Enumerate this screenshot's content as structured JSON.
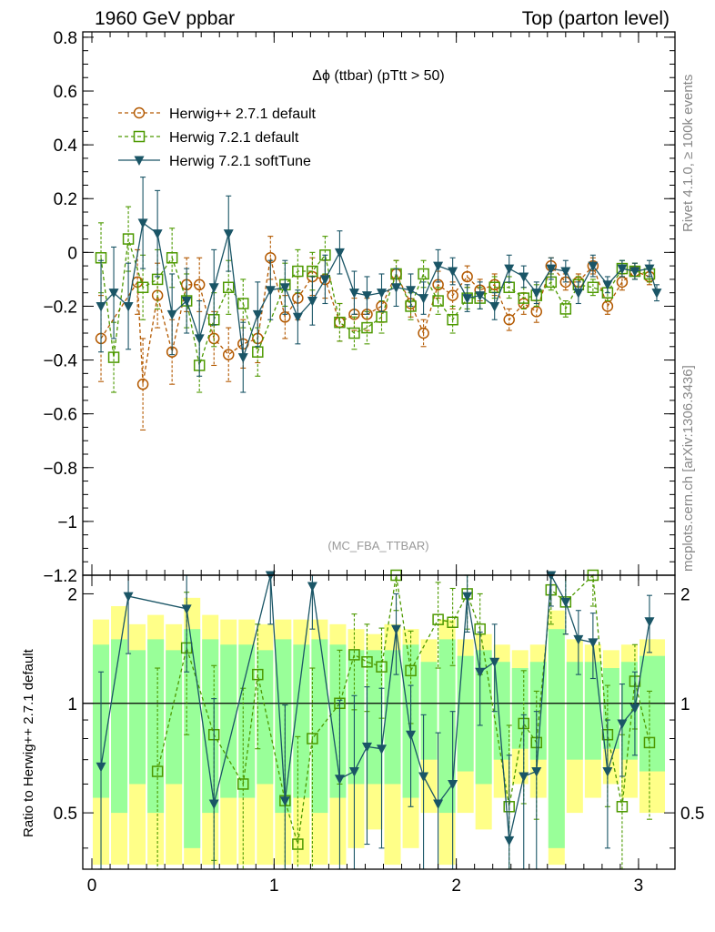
{
  "header": {
    "left_title": "1960 GeV ppbar",
    "right_title": "Top (parton level)"
  },
  "plot_title": "Δϕ (ttbar) (pTtt > 50)",
  "analysis_label": "(MC_FBA_TTBAR)",
  "side_labels": {
    "rivet": "Rivet 4.1.0, ≥ 100k events",
    "mcplots": "mcplots.cern.ch [arXiv:1306.3436]"
  },
  "colors": {
    "herwig_pp": "#b35900",
    "herwig_721": "#4d9900",
    "herwig_soft": "#1a5566",
    "band_inner": "#99ff99",
    "band_outer": "#ffff88"
  },
  "chart_data": [
    {
      "type": "line",
      "panel": "main",
      "title": "Δϕ (ttbar) (pTtt > 50)",
      "xlabel": "",
      "ylabel": "",
      "xlim": [
        -0.05,
        3.2
      ],
      "ylim": [
        -1.2,
        0.82
      ],
      "yticks": [
        "0.8",
        "0.6",
        "0.4",
        "0.2",
        "0",
        "−0.2",
        "−0.4",
        "−0.6",
        "−0.8",
        "−1",
        "−1.2"
      ],
      "legend": [
        "Herwig++ 2.7.1 default",
        "Herwig 7.2.1 default",
        "Herwig 7.2.1 softTune"
      ],
      "legend_position": "top-left",
      "x": [
        0.05,
        0.15,
        0.25,
        0.35,
        0.45,
        0.55,
        0.65,
        0.75,
        0.85,
        0.95,
        1.05,
        1.15,
        1.25,
        1.35,
        1.45,
        1.55,
        1.65,
        1.75,
        1.85,
        1.95,
        2.05,
        2.15,
        2.25,
        2.35,
        2.45,
        2.55,
        2.65,
        2.75,
        2.85,
        2.95,
        3.05,
        3.1
      ],
      "series": [
        {
          "name": "Herwig++ 2.7.1 default",
          "marker": "circle",
          "x": [
            0.05,
            0.25,
            0.28,
            0.36,
            0.44,
            0.52,
            0.59,
            0.67,
            0.75,
            0.83,
            0.91,
            0.98,
            1.06,
            1.13,
            1.21,
            1.28,
            1.36,
            1.44,
            1.51,
            1.59,
            1.67,
            1.75,
            1.82,
            1.9,
            1.98,
            2.06,
            2.13,
            2.21,
            2.29,
            2.37,
            2.44,
            2.52,
            2.6,
            2.67,
            2.75,
            2.83,
            2.91,
            2.98,
            3.06
          ],
          "values": [
            -0.32,
            -0.11,
            -0.49,
            -0.16,
            -0.37,
            -0.12,
            -0.12,
            -0.32,
            -0.38,
            -0.34,
            -0.32,
            -0.02,
            -0.24,
            -0.17,
            -0.09,
            -0.1,
            -0.26,
            -0.23,
            -0.23,
            -0.2,
            -0.08,
            -0.19,
            -0.3,
            -0.12,
            -0.16,
            -0.09,
            -0.14,
            -0.12,
            -0.25,
            -0.19,
            -0.22,
            -0.05,
            -0.11,
            -0.11,
            -0.05,
            -0.2,
            -0.11,
            -0.07,
            -0.09
          ],
          "errors": [
            0.16,
            0.12,
            0.17,
            0.12,
            0.12,
            0.1,
            0.1,
            0.1,
            0.1,
            0.09,
            0.09,
            0.08,
            0.08,
            0.08,
            0.07,
            0.07,
            0.07,
            0.06,
            0.06,
            0.06,
            0.05,
            0.05,
            0.05,
            0.05,
            0.05,
            0.04,
            0.04,
            0.04,
            0.04,
            0.04,
            0.04,
            0.03,
            0.03,
            0.03,
            0.03,
            0.03,
            0.03,
            0.03,
            0.03
          ]
        },
        {
          "name": "Herwig 7.2.1 default",
          "marker": "square",
          "x": [
            0.05,
            0.12,
            0.2,
            0.28,
            0.36,
            0.44,
            0.52,
            0.59,
            0.67,
            0.75,
            0.83,
            0.91,
            1.06,
            1.13,
            1.21,
            1.28,
            1.36,
            1.44,
            1.51,
            1.59,
            1.67,
            1.75,
            1.82,
            1.9,
            1.98,
            2.06,
            2.13,
            2.21,
            2.29,
            2.37,
            2.44,
            2.52,
            2.6,
            2.67,
            2.75,
            2.83,
            2.91,
            2.98,
            3.06
          ],
          "values": [
            -0.02,
            -0.39,
            0.05,
            -0.13,
            -0.1,
            -0.02,
            -0.18,
            -0.42,
            -0.25,
            -0.13,
            -0.19,
            -0.37,
            -0.12,
            -0.07,
            -0.07,
            -0.01,
            -0.26,
            -0.3,
            -0.28,
            -0.24,
            -0.08,
            -0.2,
            -0.08,
            -0.18,
            -0.25,
            -0.17,
            -0.17,
            -0.13,
            -0.13,
            -0.17,
            -0.16,
            -0.11,
            -0.21,
            -0.12,
            -0.13,
            -0.15,
            -0.06,
            -0.07,
            -0.08
          ],
          "errors": [
            0.13,
            0.13,
            0.12,
            0.12,
            0.11,
            0.11,
            0.1,
            0.1,
            0.1,
            0.1,
            0.09,
            0.09,
            0.08,
            0.08,
            0.07,
            0.07,
            0.07,
            0.06,
            0.06,
            0.06,
            0.05,
            0.05,
            0.05,
            0.05,
            0.05,
            0.04,
            0.04,
            0.04,
            0.04,
            0.04,
            0.04,
            0.03,
            0.03,
            0.03,
            0.03,
            0.03,
            0.03,
            0.03,
            0.03
          ]
        },
        {
          "name": "Herwig 7.2.1 softTune",
          "marker": "triangle-down",
          "x": [
            0.05,
            0.12,
            0.2,
            0.28,
            0.36,
            0.44,
            0.52,
            0.59,
            0.67,
            0.75,
            0.83,
            0.91,
            0.98,
            1.06,
            1.13,
            1.21,
            1.28,
            1.36,
            1.44,
            1.51,
            1.59,
            1.67,
            1.75,
            1.82,
            1.9,
            1.98,
            2.06,
            2.13,
            2.21,
            2.29,
            2.37,
            2.44,
            2.52,
            2.6,
            2.67,
            2.75,
            2.83,
            2.91,
            2.98,
            3.06,
            3.1
          ],
          "values": [
            -0.2,
            -0.15,
            -0.2,
            0.11,
            0.07,
            -0.23,
            -0.18,
            -0.32,
            -0.13,
            0.07,
            -0.39,
            -0.23,
            -0.14,
            -0.13,
            -0.24,
            -0.18,
            -0.1,
            0.0,
            -0.15,
            -0.16,
            -0.15,
            -0.13,
            -0.14,
            -0.17,
            -0.05,
            -0.07,
            -0.17,
            -0.16,
            -0.2,
            -0.06,
            -0.09,
            -0.15,
            -0.06,
            -0.07,
            -0.15,
            -0.05,
            -0.12,
            -0.06,
            -0.07,
            -0.06,
            -0.15
          ],
          "errors": [
            0.17,
            0.17,
            0.16,
            0.17,
            0.16,
            0.15,
            0.12,
            0.14,
            0.14,
            0.14,
            0.13,
            0.12,
            0.11,
            0.1,
            0.1,
            0.09,
            0.09,
            0.08,
            0.08,
            0.07,
            0.07,
            0.07,
            0.06,
            0.06,
            0.06,
            0.05,
            0.05,
            0.05,
            0.05,
            0.05,
            0.04,
            0.04,
            0.04,
            0.04,
            0.04,
            0.04,
            0.03,
            0.03,
            0.03,
            0.03,
            0.03
          ]
        }
      ]
    },
    {
      "type": "line",
      "panel": "ratio",
      "ylabel": "Ratio to Herwig++ 2.7.1 default",
      "xlim": [
        -0.05,
        3.2
      ],
      "ylim": [
        0.35,
        2.25
      ],
      "xticks": [
        "0",
        "1",
        "2",
        "3"
      ],
      "yticks": [
        "2",
        "1",
        "0.5"
      ],
      "reference_line": 1,
      "band_x": [
        0.05,
        0.15,
        0.25,
        0.35,
        0.45,
        0.55,
        0.65,
        0.75,
        0.85,
        0.95,
        1.05,
        1.15,
        1.25,
        1.35,
        1.45,
        1.55,
        1.65,
        1.75,
        1.85,
        1.95,
        2.05,
        2.15,
        2.25,
        2.35,
        2.45,
        2.55,
        2.65,
        2.75,
        2.85,
        2.95,
        3.05,
        3.1
      ],
      "band_inner_err": [
        0.45,
        0.5,
        0.4,
        0.5,
        0.4,
        0.6,
        0.5,
        0.45,
        0.45,
        0.4,
        0.5,
        0.45,
        0.5,
        0.45,
        0.4,
        0.4,
        0.4,
        0.45,
        0.3,
        0.5,
        0.35,
        0.4,
        0.3,
        0.25,
        0.3,
        0.6,
        0.3,
        0.3,
        0.25,
        0.3,
        0.35,
        0.35
      ],
      "band_outer_err": [
        0.7,
        0.85,
        0.65,
        0.75,
        0.65,
        0.95,
        0.75,
        0.7,
        0.7,
        0.65,
        0.7,
        0.7,
        0.7,
        0.65,
        0.6,
        0.55,
        0.65,
        0.6,
        0.5,
        0.7,
        0.5,
        0.55,
        0.45,
        0.4,
        0.45,
        0.8,
        0.5,
        0.45,
        0.4,
        0.45,
        0.5,
        0.5
      ],
      "series": [
        {
          "name": "Herwig 7.2.1 default",
          "x": [
            0.36,
            0.52,
            0.67,
            0.83,
            0.91,
            1.06,
            1.13,
            1.21,
            1.36,
            1.44,
            1.51,
            1.59,
            1.67,
            1.75,
            1.9,
            1.98,
            2.06,
            2.13,
            2.29,
            2.37,
            2.44,
            2.52,
            2.6,
            2.75,
            2.83,
            2.91,
            2.98,
            3.06
          ],
          "values": [
            0.65,
            1.42,
            0.82,
            0.6,
            1.2,
            0.54,
            0.41,
            0.8,
            1.0,
            1.36,
            1.3,
            1.26,
            2.25,
            1.23,
            1.7,
            1.67,
            2.0,
            1.6,
            0.52,
            0.88,
            0.78,
            2.05,
            1.9,
            2.25,
            0.82,
            0.52,
            1.15,
            0.78
          ],
          "errors": [
            0.6,
            0.6,
            0.45,
            0.5,
            0.45,
            0.45,
            0.4,
            0.45,
            0.4,
            0.4,
            0.35,
            0.35,
            0.45,
            0.35,
            0.45,
            0.4,
            0.4,
            0.4,
            0.35,
            0.35,
            0.3,
            0.4,
            0.35,
            0.4,
            0.3,
            0.3,
            0.3,
            0.3
          ]
        },
        {
          "name": "Herwig 7.2.1 softTune",
          "x": [
            0.05,
            0.2,
            0.52,
            0.67,
            0.98,
            1.06,
            1.21,
            1.36,
            1.44,
            1.51,
            1.59,
            1.67,
            1.75,
            1.82,
            1.9,
            1.98,
            2.06,
            2.13,
            2.21,
            2.29,
            2.37,
            2.44,
            2.52,
            2.6,
            2.67,
            2.75,
            2.83,
            2.91,
            2.98,
            3.06
          ],
          "values": [
            0.67,
            1.97,
            1.82,
            0.53,
            2.25,
            0.54,
            2.1,
            0.62,
            0.65,
            0.76,
            0.75,
            1.6,
            0.82,
            0.63,
            0.53,
            0.6,
            1.97,
            1.22,
            1.3,
            0.42,
            0.63,
            0.65,
            2.25,
            1.9,
            1.5,
            1.47,
            0.65,
            0.88,
            0.97,
            1.68
          ],
          "errors": [
            0.55,
            0.6,
            0.6,
            0.5,
            0.6,
            0.45,
            0.5,
            0.4,
            0.4,
            0.35,
            0.35,
            0.4,
            0.3,
            0.3,
            0.3,
            0.35,
            0.4,
            0.35,
            0.35,
            0.3,
            0.3,
            0.3,
            0.4,
            0.35,
            0.3,
            0.3,
            0.25,
            0.25,
            0.25,
            0.3
          ]
        }
      ]
    }
  ]
}
